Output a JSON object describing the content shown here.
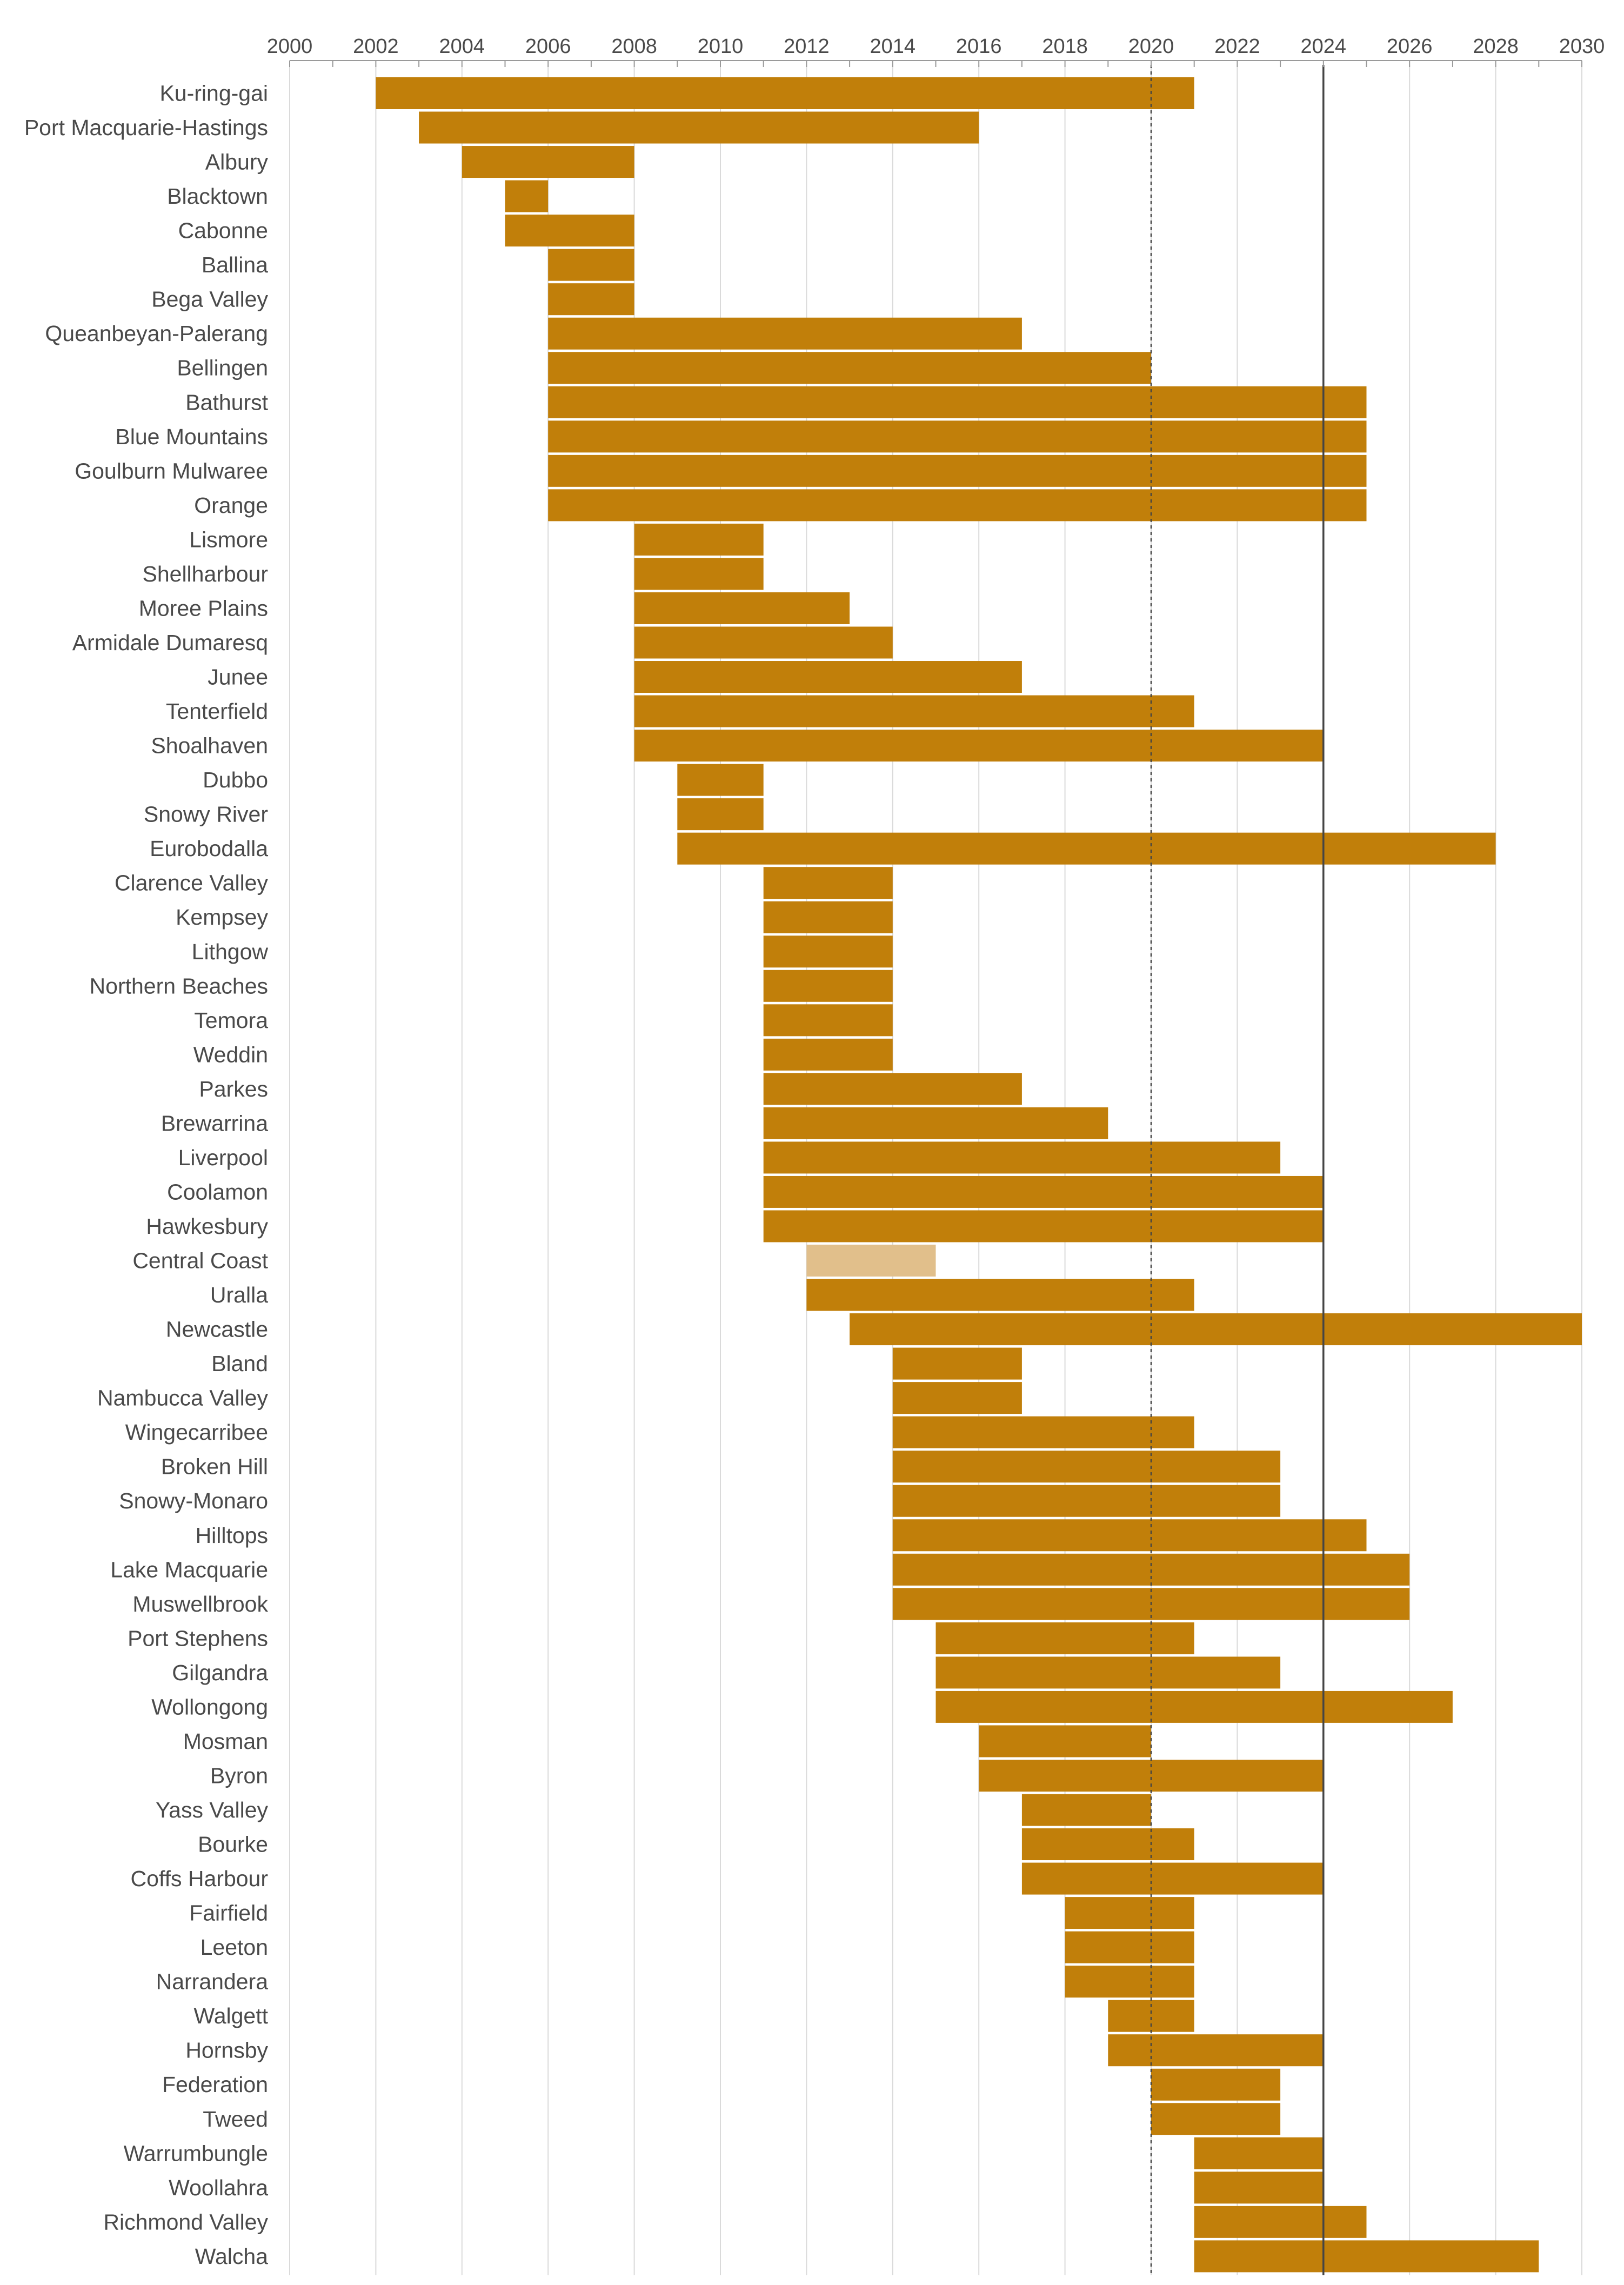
{
  "chart_data": {
    "type": "bar",
    "orientation": "horizontal",
    "variant": "timeline-range",
    "title": "",
    "xlabel": "",
    "ylabel": "",
    "xlim": [
      2000,
      2030
    ],
    "x_ticks": [
      "2000",
      "2002",
      "2004",
      "2006",
      "2008",
      "2010",
      "2012",
      "2014",
      "2016",
      "2018",
      "2020",
      "2022",
      "2024",
      "2026",
      "2028",
      "2030"
    ],
    "x_tick_values": [
      2000,
      2002,
      2004,
      2006,
      2008,
      2010,
      2012,
      2014,
      2016,
      2018,
      2020,
      2022,
      2024,
      2026,
      2028,
      2030
    ],
    "grid": true,
    "reference_lines": [
      {
        "value": 2020,
        "style": "dotted"
      },
      {
        "value": 2024,
        "style": "solid"
      }
    ],
    "colors": {
      "bar": "#C17F0A",
      "bar_light": "#E1BF8B",
      "grid": "#DADADA",
      "reference": "#444444",
      "label": "#4a4a4a"
    },
    "categories": [
      "Ku-ring-gai",
      "Port Macquarie-Hastings",
      "Albury",
      "Blacktown",
      "Cabonne",
      "Ballina",
      "Bega Valley",
      "Queanbeyan-Palerang",
      "Bellingen",
      "Bathurst",
      "Blue Mountains",
      "Goulburn Mulwaree",
      "Orange",
      "Lismore",
      "Shellharbour",
      "Moree Plains",
      "Armidale Dumaresq",
      "Junee",
      "Tenterfield",
      "Shoalhaven",
      "Dubbo",
      "Snowy River",
      "Eurobodalla",
      "Clarence Valley",
      "Kempsey",
      "Lithgow",
      "Northern Beaches",
      "Temora",
      "Weddin",
      "Parkes",
      "Brewarrina",
      "Liverpool",
      "Coolamon",
      "Hawkesbury",
      "Central Coast",
      "Uralla",
      "Newcastle",
      "Bland",
      "Nambucca Valley",
      "Wingecarribee",
      "Broken Hill",
      "Snowy-Monaro",
      "Hilltops",
      "Lake Macquarie",
      "Muswellbrook",
      "Port Stephens",
      "Gilgandra",
      "Wollongong",
      "Mosman",
      "Byron",
      "Yass Valley",
      "Bourke",
      "Coffs Harbour",
      "Fairfield",
      "Leeton",
      "Narrandera",
      "Walgett",
      "Hornsby",
      "Federation",
      "Tweed",
      "Warrumbungle",
      "Woollahra",
      "Richmond Valley",
      "Walcha"
    ],
    "series": [
      {
        "name": "Period",
        "start": [
          2002,
          2003,
          2004,
          2005,
          2005,
          2006,
          2006,
          2006,
          2006,
          2006,
          2006,
          2006,
          2006,
          2008,
          2008,
          2008,
          2008,
          2008,
          2008,
          2008,
          2009,
          2009,
          2009,
          2011,
          2011,
          2011,
          2011,
          2011,
          2011,
          2011,
          2011,
          2011,
          2011,
          2011,
          2012,
          2012,
          2013,
          2014,
          2014,
          2014,
          2014,
          2014,
          2014,
          2014,
          2014,
          2015,
          2015,
          2015,
          2016,
          2016,
          2017,
          2017,
          2017,
          2018,
          2018,
          2018,
          2019,
          2019,
          2020,
          2020,
          2021,
          2021,
          2021,
          2021
        ],
        "end": [
          2021,
          2016,
          2008,
          2006,
          2008,
          2008,
          2008,
          2017,
          2020,
          2025,
          2025,
          2025,
          2025,
          2011,
          2011,
          2013,
          2014,
          2017,
          2021,
          2024,
          2011,
          2011,
          2028,
          2014,
          2014,
          2014,
          2014,
          2014,
          2014,
          2017,
          2019,
          2023,
          2024,
          2024,
          2015,
          2021,
          2030,
          2017,
          2017,
          2021,
          2023,
          2023,
          2025,
          2026,
          2026,
          2021,
          2023,
          2027,
          2020,
          2024,
          2020,
          2021,
          2024,
          2021,
          2021,
          2021,
          2021,
          2024,
          2023,
          2023,
          2024,
          2024,
          2025,
          2029
        ],
        "highlight": [
          false,
          false,
          false,
          false,
          false,
          false,
          false,
          false,
          false,
          false,
          false,
          false,
          false,
          false,
          false,
          false,
          false,
          false,
          false,
          false,
          false,
          false,
          false,
          false,
          false,
          false,
          false,
          false,
          false,
          false,
          false,
          false,
          false,
          false,
          true,
          false,
          false,
          false,
          false,
          false,
          false,
          false,
          false,
          false,
          false,
          false,
          false,
          false,
          false,
          false,
          false,
          false,
          false,
          false,
          false,
          false,
          false,
          false,
          false,
          false,
          false,
          false,
          false,
          false
        ]
      }
    ]
  }
}
